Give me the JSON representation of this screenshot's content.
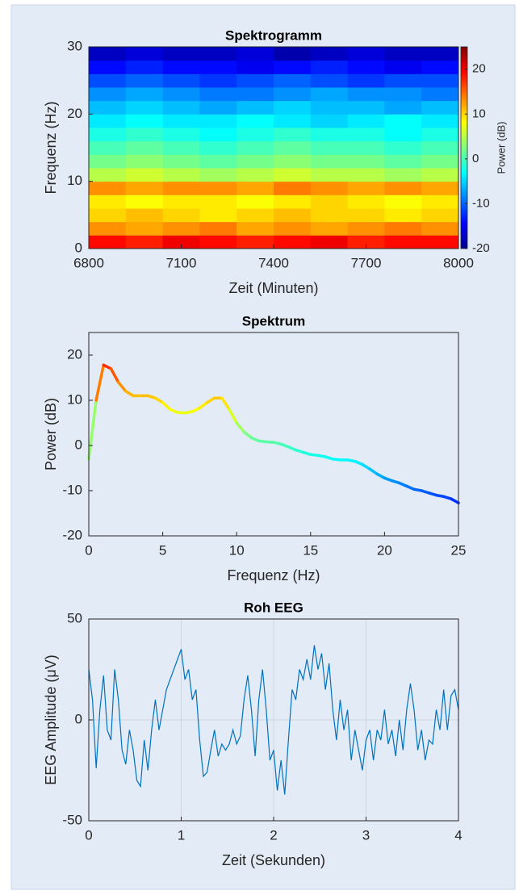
{
  "chart_data": [
    {
      "type": "heatmap",
      "title": "Spektrogramm",
      "x_label": "Zeit (Minuten)",
      "y_label": "Frequenz (Hz)",
      "colormap": "jet",
      "colorbar_label": "Power (dB)",
      "clim": [
        -20,
        25
      ],
      "cticks": [
        -20,
        -10,
        0,
        10,
        20
      ],
      "xlim": [
        6800,
        8000
      ],
      "ylim": [
        0,
        30
      ],
      "xticks": [
        6800,
        7100,
        7400,
        7700,
        8000
      ],
      "yticks": [
        0,
        10,
        20,
        30
      ],
      "x": [
        6800,
        6920,
        7040,
        7160,
        7280,
        7400,
        7520,
        7640,
        7760,
        7880
      ],
      "y": [
        0,
        2,
        4,
        6,
        8,
        10,
        12,
        14,
        16,
        18,
        20,
        22,
        24,
        26,
        28
      ],
      "z": [
        [
          19,
          18,
          20,
          19,
          18,
          19,
          20,
          18,
          19,
          19
        ],
        [
          13,
          12,
          13,
          14,
          12,
          13,
          12,
          13,
          14,
          13
        ],
        [
          10,
          11,
          10,
          9,
          10,
          11,
          10,
          10,
          9,
          10
        ],
        [
          9,
          8,
          9,
          9,
          8,
          9,
          10,
          9,
          8,
          9
        ],
        [
          13,
          12,
          13,
          13,
          12,
          14,
          13,
          12,
          13,
          12
        ],
        [
          5,
          6,
          5,
          4,
          5,
          6,
          5,
          5,
          4,
          5
        ],
        [
          2,
          3,
          2,
          1,
          2,
          3,
          2,
          2,
          1,
          2
        ],
        [
          0,
          1,
          0,
          -1,
          0,
          1,
          0,
          0,
          -1,
          0
        ],
        [
          -2,
          -1,
          -2,
          -3,
          -2,
          -1,
          -2,
          -2,
          -3,
          -2
        ],
        [
          -4,
          -3,
          -4,
          -4,
          -3,
          -4,
          -5,
          -4,
          -3,
          -4
        ],
        [
          -6,
          -5,
          -6,
          -7,
          -6,
          -5,
          -6,
          -6,
          -7,
          -6
        ],
        [
          -8,
          -7,
          -8,
          -9,
          -9,
          -8,
          -7,
          -8,
          -8,
          -9
        ],
        [
          -11,
          -10,
          -11,
          -12,
          -11,
          -10,
          -11,
          -12,
          -11,
          -11
        ],
        [
          -14,
          -13,
          -14,
          -14,
          -15,
          -14,
          -13,
          -14,
          -15,
          -14
        ],
        [
          -17,
          -16,
          -17,
          -17,
          -16,
          -18,
          -17,
          -16,
          -17,
          -17
        ]
      ]
    },
    {
      "type": "line",
      "title": "Spektrum",
      "x_label": "Frequenz (Hz)",
      "y_label": "Power (dB)",
      "color_by_value": true,
      "colormap": "jet",
      "xlim": [
        0,
        25
      ],
      "ylim": [
        -20,
        25
      ],
      "xticks": [
        0,
        5,
        10,
        15,
        20,
        25
      ],
      "yticks": [
        -20,
        -10,
        0,
        10,
        20
      ],
      "x": [
        0,
        0.5,
        1,
        1.5,
        2,
        2.5,
        3,
        3.5,
        4,
        4.5,
        5,
        5.5,
        6,
        6.5,
        7,
        7.5,
        8,
        8.5,
        9,
        9.5,
        10,
        10.5,
        11,
        11.5,
        12,
        12.5,
        13,
        13.5,
        14,
        14.5,
        15,
        15.5,
        16,
        16.5,
        17,
        17.5,
        18,
        18.5,
        19,
        19.5,
        20,
        20.5,
        21,
        21.5,
        22,
        22.5,
        23,
        23.5,
        24,
        24.5,
        25
      ],
      "values": [
        -3,
        10,
        17.8,
        17,
        14,
        12,
        11,
        11,
        11,
        10.5,
        9.5,
        8,
        7.3,
        7.2,
        7.5,
        8.3,
        9.5,
        10.5,
        10.5,
        8,
        5,
        3,
        1.7,
        1,
        0.8,
        0.7,
        0.3,
        -0.3,
        -1,
        -1.5,
        -2,
        -2.2,
        -2.5,
        -3,
        -3.2,
        -3.2,
        -3.5,
        -4.2,
        -5.2,
        -6.3,
        -7.2,
        -7.8,
        -8.3,
        -9,
        -9.7,
        -10,
        -10.5,
        -11,
        -11.3,
        -11.8,
        -12.7
      ]
    },
    {
      "type": "line",
      "title": "Roh EEG",
      "x_label": "Zeit (Sekunden)",
      "y_label": "EEG Amplitude (μV)",
      "color": "#0072bd",
      "grid": true,
      "xlim": [
        0,
        4
      ],
      "ylim": [
        -50,
        50
      ],
      "xticks": [
        0,
        1,
        2,
        3,
        4
      ],
      "yticks": [
        -50,
        0,
        50
      ],
      "x": [
        0,
        0.04,
        0.08,
        0.12,
        0.16,
        0.2,
        0.24,
        0.28,
        0.32,
        0.36,
        0.4,
        0.44,
        0.48,
        0.52,
        0.56,
        0.6,
        0.64,
        0.68,
        0.72,
        0.76,
        0.8,
        0.84,
        0.88,
        0.92,
        0.96,
        1,
        1.04,
        1.08,
        1.12,
        1.16,
        1.2,
        1.24,
        1.28,
        1.32,
        1.36,
        1.4,
        1.44,
        1.48,
        1.52,
        1.56,
        1.6,
        1.64,
        1.68,
        1.72,
        1.76,
        1.8,
        1.84,
        1.88,
        1.92,
        1.96,
        2,
        2.04,
        2.08,
        2.12,
        2.16,
        2.2,
        2.24,
        2.28,
        2.32,
        2.36,
        2.4,
        2.44,
        2.48,
        2.52,
        2.56,
        2.6,
        2.64,
        2.68,
        2.72,
        2.76,
        2.8,
        2.84,
        2.88,
        2.92,
        2.96,
        3,
        3.04,
        3.08,
        3.12,
        3.16,
        3.2,
        3.24,
        3.28,
        3.32,
        3.36,
        3.4,
        3.44,
        3.48,
        3.52,
        3.56,
        3.6,
        3.64,
        3.68,
        3.72,
        3.76,
        3.8,
        3.84,
        3.88,
        3.92,
        3.96,
        4
      ],
      "values": [
        25,
        10,
        -24,
        5,
        22,
        -5,
        -10,
        25,
        10,
        -15,
        -22,
        -5,
        -15,
        -30,
        -33,
        -10,
        -25,
        -5,
        10,
        -5,
        5,
        15,
        20,
        25,
        30,
        35,
        20,
        25,
        10,
        15,
        -10,
        -28,
        -26,
        -15,
        -5,
        -18,
        -12,
        -15,
        -12,
        -5,
        -12,
        -8,
        10,
        22,
        5,
        -18,
        10,
        25,
        5,
        -20,
        -15,
        -35,
        -20,
        -37,
        -10,
        15,
        10,
        25,
        20,
        30,
        20,
        37,
        25,
        33,
        15,
        28,
        5,
        -10,
        10,
        -5,
        5,
        -20,
        -5,
        -15,
        -25,
        -10,
        -5,
        -20,
        -5,
        -10,
        5,
        -12,
        -5,
        -18,
        0,
        -15,
        5,
        18,
        5,
        -15,
        -5,
        -20,
        -10,
        -12,
        5,
        -5,
        15,
        -5,
        12,
        15,
        5
      ]
    }
  ]
}
